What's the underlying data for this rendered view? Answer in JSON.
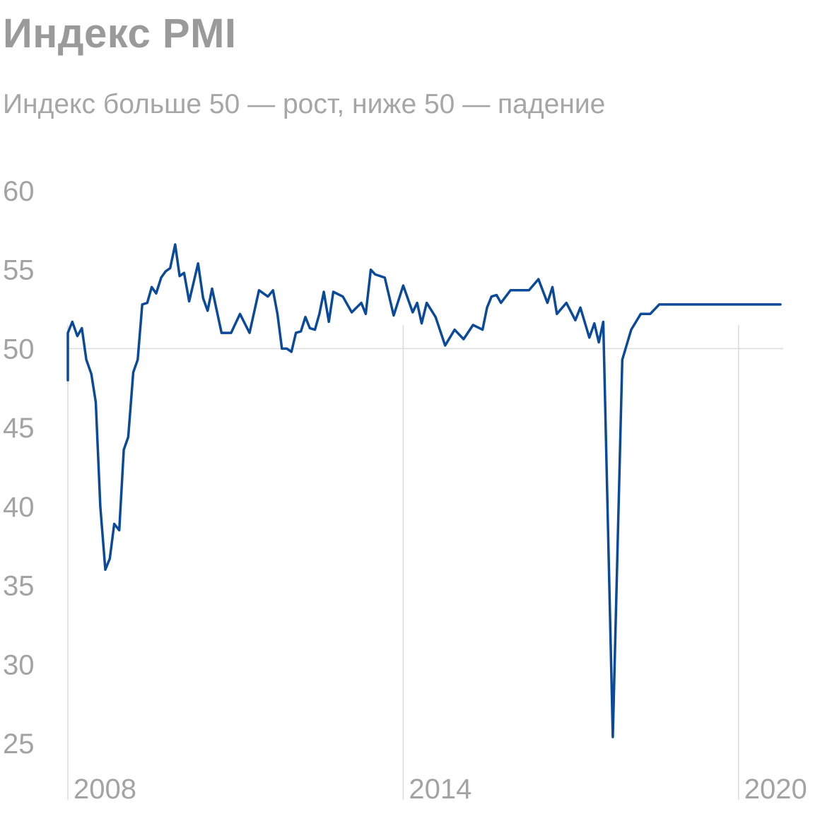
{
  "title": "Индекс PMI",
  "subtitle": "Индекс больше 50 — рост, ниже 50 — падение",
  "colors": {
    "line": "#0b4a99",
    "grid": "#dcdcdc",
    "text": "#a3a3a3",
    "title": "#9a9a9a"
  },
  "chart_data": {
    "type": "line",
    "title": "Индекс PMI",
    "subtitle": "Индекс больше 50 — рост, ниже 50 — падение",
    "xlabel": "",
    "ylabel": "",
    "ylim": [
      25,
      60
    ],
    "xlim": [
      2008,
      2020.8
    ],
    "y_ticks": [
      25,
      30,
      35,
      40,
      45,
      50,
      55,
      60
    ],
    "x_ticks": [
      2008,
      2014,
      2020
    ],
    "reference_line": 50,
    "grid": false,
    "legend": "none",
    "series": [
      {
        "x": [
          2008.0,
          2008.0,
          2008.08,
          2008.17,
          2008.25,
          2008.33,
          2008.42,
          2008.5,
          2008.58,
          2008.67,
          2008.75,
          2008.83,
          2008.92,
          2009.0,
          2009.08,
          2009.17,
          2009.25,
          2009.33,
          2009.42,
          2009.5,
          2009.58,
          2009.67,
          2009.75,
          2009.83,
          2009.92,
          2010.0,
          2010.08,
          2010.17,
          2010.25,
          2010.33,
          2010.42,
          2010.5,
          2010.58,
          2010.75,
          2010.92,
          2011.08,
          2011.25,
          2011.42,
          2011.58,
          2011.67,
          2011.75,
          2011.83,
          2011.92,
          2012.0,
          2012.08,
          2012.17,
          2012.25,
          2012.33,
          2012.42,
          2012.5,
          2012.58,
          2012.67,
          2012.75,
          2012.92,
          2013.08,
          2013.25,
          2013.33,
          2013.42,
          2013.5,
          2013.67,
          2013.83,
          2014.0,
          2014.17,
          2014.25,
          2014.33,
          2014.42,
          2014.58,
          2014.75,
          2014.92,
          2015.08,
          2015.25,
          2015.42,
          2015.5,
          2015.58,
          2015.67,
          2015.75,
          2015.92,
          2016.08,
          2016.25,
          2016.42,
          2016.58,
          2016.67,
          2016.75,
          2016.92,
          2017.08,
          2017.17,
          2017.33,
          2017.42,
          2017.5,
          2017.58,
          2017.75,
          2017.92,
          2018.08,
          2018.25,
          2018.42,
          2018.58,
          2018.67,
          2018.75,
          2018.92,
          2019.08,
          2019.25,
          2019.42,
          2019.58,
          2019.75,
          2019.92,
          2020.0,
          2020.08,
          2020.17,
          2020.25,
          2020.33,
          2020.42,
          2020.5,
          2020.58,
          2020.67,
          2020.75
        ],
        "values": [
          48.0,
          51.0,
          51.7,
          50.8,
          51.3,
          49.3,
          48.4,
          46.6,
          40.0,
          36.0,
          36.7,
          38.9,
          38.5,
          43.6,
          44.4,
          48.5,
          49.3,
          52.8,
          52.9,
          53.9,
          53.5,
          54.5,
          54.9,
          55.1,
          56.6,
          54.6,
          54.8,
          53.0,
          54.2,
          55.4,
          53.2,
          52.4,
          53.8,
          51.0,
          51.0,
          52.2,
          51.0,
          53.7,
          53.3,
          53.7,
          52.2,
          50.0,
          50.0,
          49.8,
          51.0,
          51.1,
          52.0,
          51.3,
          51.2,
          52.2,
          53.6,
          51.7,
          53.6,
          53.3,
          52.3,
          52.9,
          52.2,
          55.0,
          54.7,
          54.5,
          52.1,
          54.0,
          52.3,
          52.9,
          51.6,
          52.9,
          52.0,
          50.2,
          51.2,
          50.6,
          51.5,
          51.2,
          52.6,
          53.3,
          53.4,
          52.9,
          53.7,
          53.7,
          53.7,
          54.4,
          52.9,
          53.9,
          52.2,
          52.9,
          51.8,
          52.6,
          50.7,
          51.6,
          50.4,
          51.7,
          25.4,
          49.3,
          51.2,
          52.2,
          52.2,
          52.8,
          52.8,
          52.8,
          52.8,
          52.8,
          52.8,
          52.8,
          52.8,
          52.8,
          52.8,
          52.8,
          52.8,
          52.8,
          52.8,
          52.8,
          52.8,
          52.8,
          52.8,
          52.8,
          52.8
        ]
      }
    ]
  }
}
